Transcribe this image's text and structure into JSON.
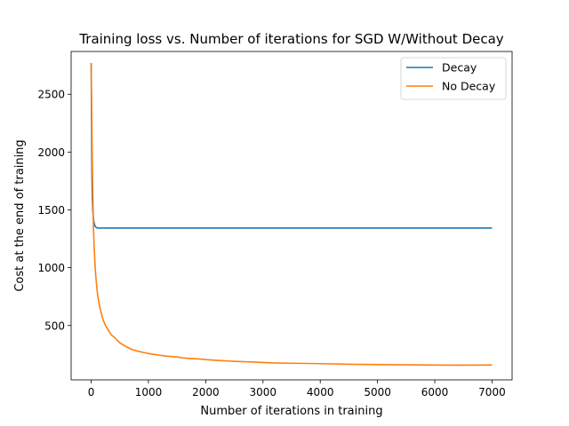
{
  "chart_data": {
    "type": "line",
    "title": "Training loss vs. Number of iterations for SGD W/Without Decay",
    "xlabel": "Number of iterations in training",
    "ylabel": "Cost at the end of training",
    "xlim": [
      -350,
      7350
    ],
    "ylim": [
      30,
      2870
    ],
    "xticks": [
      0,
      1000,
      2000,
      3000,
      4000,
      5000,
      6000,
      7000
    ],
    "xtick_labels": [
      "0",
      "1000",
      "2000",
      "3000",
      "4000",
      "5000",
      "6000",
      "7000"
    ],
    "yticks": [
      500,
      1000,
      1500,
      2000,
      2500
    ],
    "ytick_labels": [
      "500",
      "1000",
      "1500",
      "2000",
      "2500"
    ],
    "grid": false,
    "legend_position": "upper-right",
    "colors": {
      "Decay": "#1f77b4",
      "No Decay": "#ff7f0e"
    },
    "series": [
      {
        "name": "Decay",
        "x": [
          0,
          5,
          10,
          15,
          20,
          30,
          40,
          50,
          60,
          70,
          80,
          90,
          100,
          120,
          150,
          200,
          500,
          1000,
          2000,
          3000,
          4000,
          5000,
          6000,
          7000
        ],
        "y": [
          2770,
          2350,
          2000,
          1750,
          1600,
          1480,
          1420,
          1390,
          1370,
          1360,
          1352,
          1348,
          1345,
          1344,
          1343,
          1343,
          1343,
          1343,
          1343,
          1343,
          1343,
          1343,
          1343,
          1343
        ]
      },
      {
        "name": "No Decay",
        "x": [
          0,
          10,
          20,
          30,
          40,
          50,
          60,
          70,
          80,
          100,
          120,
          150,
          180,
          200,
          250,
          300,
          350,
          400,
          450,
          500,
          600,
          700,
          800,
          900,
          1000,
          1100,
          1200,
          1300,
          1400,
          1500,
          1600,
          1700,
          1800,
          1900,
          2000,
          2200,
          2500,
          2800,
          3000,
          3200,
          3500,
          4000,
          4500,
          5000,
          5500,
          6000,
          6500,
          7000
        ],
        "y": [
          2770,
          2300,
          1900,
          1600,
          1350,
          1200,
          1100,
          1000,
          930,
          820,
          740,
          660,
          600,
          560,
          500,
          460,
          420,
          400,
          375,
          350,
          320,
          295,
          280,
          268,
          258,
          250,
          243,
          236,
          232,
          228,
          220,
          216,
          213,
          210,
          205,
          198,
          190,
          185,
          180,
          176,
          174,
          170,
          165,
          162,
          160,
          158,
          157,
          158
        ]
      }
    ]
  }
}
